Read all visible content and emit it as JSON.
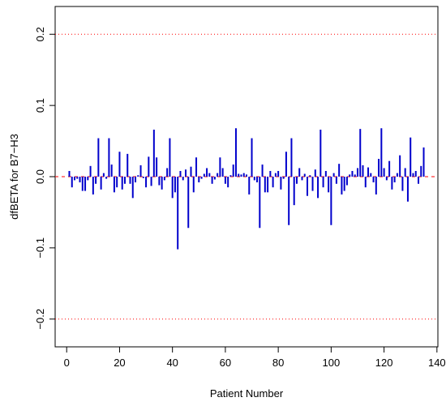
{
  "chart_data": {
    "type": "spike",
    "xlabel": "Patient Number",
    "ylabel": "dfBETA for B7−H3",
    "color": "#0000cc",
    "x": [
      1,
      2,
      3,
      4,
      5,
      6,
      7,
      8,
      9,
      10,
      11,
      12,
      13,
      14,
      15,
      16,
      17,
      18,
      19,
      20,
      21,
      22,
      23,
      24,
      25,
      26,
      27,
      28,
      29,
      30,
      31,
      32,
      33,
      34,
      35,
      36,
      37,
      38,
      39,
      40,
      41,
      42,
      43,
      44,
      45,
      46,
      47,
      48,
      49,
      50,
      51,
      52,
      53,
      54,
      55,
      56,
      57,
      58,
      59,
      60,
      61,
      62,
      63,
      64,
      65,
      66,
      67,
      68,
      69,
      70,
      71,
      72,
      73,
      74,
      75,
      76,
      77,
      78,
      79,
      80,
      81,
      82,
      83,
      84,
      85,
      86,
      87,
      88,
      89,
      90,
      91,
      92,
      93,
      94,
      95,
      96,
      97,
      98,
      99,
      100,
      101,
      102,
      103,
      104,
      105,
      106,
      107,
      108,
      109,
      110,
      111,
      112,
      113,
      114,
      115,
      116,
      117,
      118,
      119,
      120,
      121,
      122,
      123,
      124,
      125,
      126,
      127,
      128,
      129,
      130,
      131,
      132,
      133,
      134,
      135
    ],
    "values": [
      0.008,
      -0.015,
      -0.005,
      -0.003,
      -0.008,
      -0.02,
      -0.02,
      -0.005,
      0.015,
      -0.025,
      -0.01,
      0.054,
      -0.018,
      0.005,
      -0.003,
      0.054,
      0.017,
      -0.022,
      -0.015,
      0.035,
      -0.018,
      -0.01,
      0.032,
      -0.01,
      -0.03,
      -0.008,
      0.002,
      0.016,
      -0.002,
      -0.015,
      0.028,
      -0.013,
      0.066,
      0.027,
      -0.012,
      -0.018,
      -0.005,
      0.012,
      0.054,
      -0.03,
      -0.022,
      -0.102,
      0.008,
      -0.005,
      0.01,
      -0.072,
      0.014,
      -0.022,
      0.027,
      -0.008,
      -0.003,
      0.004,
      0.012,
      0.005,
      -0.01,
      -0.004,
      0.005,
      0.027,
      0.012,
      -0.01,
      -0.015,
      0.002,
      0.017,
      0.068,
      0.004,
      0.003,
      0.005,
      0.003,
      -0.025,
      0.054,
      -0.005,
      -0.008,
      -0.072,
      0.017,
      -0.022,
      -0.022,
      0.008,
      -0.015,
      0.005,
      0.008,
      -0.018,
      -0.003,
      0.035,
      -0.068,
      0.054,
      -0.04,
      -0.01,
      0.012,
      -0.005,
      0.004,
      -0.027,
      0.002,
      -0.02,
      0.01,
      -0.03,
      0.066,
      -0.015,
      0.008,
      -0.022,
      -0.068,
      0.005,
      -0.01,
      0.018,
      -0.025,
      -0.02,
      -0.012,
      0.003,
      0.008,
      0.003,
      0.012,
      0.067,
      0.016,
      -0.015,
      0.013,
      0.005,
      -0.008,
      -0.025,
      0.025,
      0.068,
      0.012,
      -0.005,
      0.022,
      -0.018,
      -0.008,
      0.005,
      0.03,
      -0.02,
      0.012,
      -0.035,
      0.055,
      0.005,
      0.008,
      -0.01,
      0.015,
      0.041
    ],
    "hlines": [
      {
        "value": 0.2,
        "style": "dotted",
        "color": "#ff0000"
      },
      {
        "value": 0,
        "style": "dashed",
        "color": "#ff0000"
      },
      {
        "value": -0.2,
        "style": "dotted",
        "color": "#ff0000"
      }
    ],
    "xlim": [
      -4.36,
      140.36
    ],
    "ylim": [
      -0.239,
      0.239
    ],
    "xticks": [
      0,
      20,
      40,
      60,
      80,
      100,
      120,
      140
    ],
    "yticks": [
      {
        "value": -0.2,
        "label": "−0.2"
      },
      {
        "value": -0.1,
        "label": "−0.1"
      },
      {
        "value": 0,
        "label": "0.0"
      },
      0.1,
      0.2
    ]
  }
}
